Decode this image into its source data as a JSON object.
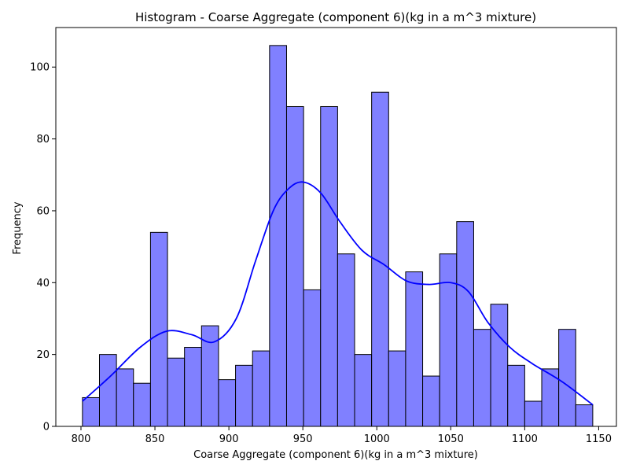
{
  "chart_data": {
    "type": "bar",
    "title": "Histogram - Coarse Aggregate  (component 6)(kg in a m^3 mixture)",
    "xlabel": "Coarse Aggregate  (component 6)(kg in a m^3 mixture)",
    "ylabel": "Frequency",
    "xlim": [
      783,
      1162
    ],
    "ylim": [
      0,
      111
    ],
    "x_ticks": [
      800,
      850,
      900,
      950,
      1000,
      1050,
      1100,
      1150
    ],
    "y_ticks": [
      0,
      20,
      40,
      60,
      80,
      100
    ],
    "bin_edges": [
      801.0,
      812.5,
      824.0,
      835.5,
      847.0,
      858.5,
      870.0,
      881.5,
      893.0,
      904.5,
      916.0,
      927.5,
      939.0,
      950.5,
      962.0,
      973.5,
      985.0,
      996.5,
      1008.0,
      1019.5,
      1031.0,
      1042.5,
      1054.0,
      1065.5,
      1077.0,
      1088.5,
      1100.0,
      1111.5,
      1123.0,
      1134.5,
      1146.0
    ],
    "values": [
      8,
      20,
      16,
      12,
      54,
      19,
      22,
      28,
      13,
      17,
      21,
      106,
      89,
      38,
      89,
      48,
      20,
      93,
      21,
      43,
      14,
      48,
      57,
      27,
      34,
      17,
      7,
      16,
      27,
      6
    ],
    "kde": {
      "x": [
        801,
        820,
        840,
        858,
        875,
        890,
        905,
        918,
        930,
        940,
        950,
        962,
        975,
        990,
        1005,
        1020,
        1035,
        1050,
        1062,
        1075,
        1090,
        1105,
        1125,
        1146
      ],
      "y": [
        7,
        14,
        22,
        26.5,
        25.5,
        23.5,
        30,
        46,
        60,
        66,
        68,
        65,
        57,
        49,
        45,
        40.5,
        39.5,
        40,
        37.5,
        29,
        22,
        17.5,
        12.5,
        6
      ]
    },
    "colors": {
      "bar_fill": "#8080ff",
      "bar_edge": "#000000",
      "kde_line": "#0000ff"
    },
    "grid": false
  }
}
